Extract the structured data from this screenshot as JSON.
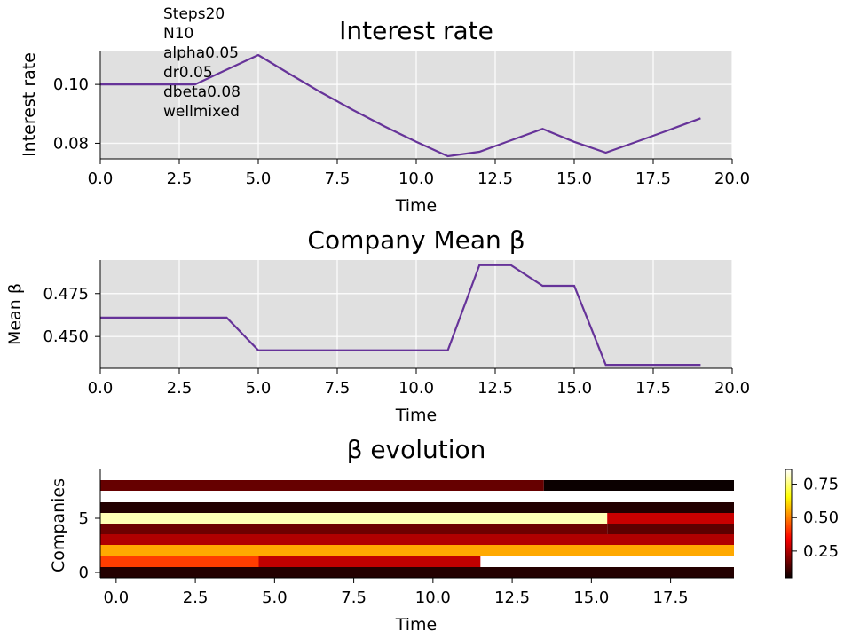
{
  "annotation_lines": [
    "Steps20",
    "N10",
    "alpha0.05",
    "dr0.05",
    "dbeta0.08",
    "wellmixed"
  ],
  "colors": {
    "line": "#663399",
    "axes_bg": "#e0e0e0",
    "grid": "#ffffff"
  },
  "colormap": "hot",
  "chart_data": [
    {
      "type": "line",
      "title": "Interest rate",
      "xlabel": "Time",
      "ylabel": "Interest rate",
      "xlim": [
        0,
        20
      ],
      "ylim": [
        0.0747,
        0.1115
      ],
      "xticks": [
        "0.0",
        "2.5",
        "5.0",
        "7.5",
        "10.0",
        "12.5",
        "15.0",
        "17.5",
        "20.0"
      ],
      "yticks": [
        "0.08",
        "0.10"
      ],
      "grid": true,
      "series": [
        {
          "x": [
            0,
            1,
            2,
            3,
            4,
            5,
            6,
            7,
            8,
            9,
            10,
            11,
            12,
            13,
            14,
            15,
            16,
            17,
            18,
            19
          ],
          "y": [
            0.1,
            0.1,
            0.1,
            0.1,
            0.105,
            0.11,
            0.1035,
            0.0972,
            0.0913,
            0.0857,
            0.0805,
            0.0756,
            0.0771,
            0.081,
            0.0849,
            0.0805,
            0.0768,
            0.0806,
            0.0845,
            0.0885
          ]
        }
      ]
    },
    {
      "type": "line",
      "title": "Company Mean β",
      "xlabel": "Time",
      "ylabel": "Mean β",
      "xlim": [
        0,
        20
      ],
      "ylim": [
        0.4315,
        0.4945
      ],
      "xticks": [
        "0.0",
        "2.5",
        "5.0",
        "7.5",
        "10.0",
        "12.5",
        "15.0",
        "17.5",
        "20.0"
      ],
      "yticks": [
        "0.450",
        "0.475"
      ],
      "grid": true,
      "series": [
        {
          "x": [
            0,
            1,
            2,
            3,
            4,
            5,
            6,
            7,
            8,
            9,
            10,
            11,
            12,
            13,
            14,
            15,
            16,
            17,
            18,
            19
          ],
          "y": [
            0.461,
            0.461,
            0.461,
            0.461,
            0.461,
            0.442,
            0.442,
            0.442,
            0.442,
            0.442,
            0.442,
            0.442,
            0.4915,
            0.4915,
            0.4795,
            0.4795,
            0.4335,
            0.4335,
            0.4335,
            0.4335
          ]
        }
      ]
    },
    {
      "type": "heatmap",
      "title": "β evolution",
      "xlabel": "Time",
      "ylabel": "Companies",
      "xticks": [
        "0.0",
        "2.5",
        "5.0",
        "7.5",
        "10.0",
        "12.5",
        "15.0",
        "17.5"
      ],
      "yticks": [
        "0",
        "5"
      ],
      "colorbar_ticks": [
        "0.25",
        "0.50",
        "0.75"
      ],
      "vmin": 0.05,
      "vmax": 0.86,
      "rows": [
        {
          "company": 0,
          "segments": [
            {
              "from": 0,
              "to": 19,
              "value": 0.08
            }
          ]
        },
        {
          "company": 1,
          "segments": [
            {
              "from": 0,
              "to": 4,
              "value": 0.42
            },
            {
              "from": 5,
              "to": 11,
              "value": 0.27
            },
            {
              "from": 12,
              "to": 19,
              "value": 0.86
            }
          ]
        },
        {
          "company": 2,
          "segments": [
            {
              "from": 0,
              "to": 19,
              "value": 0.55
            }
          ]
        },
        {
          "company": 3,
          "segments": [
            {
              "from": 0,
              "to": 19,
              "value": 0.25
            }
          ]
        },
        {
          "company": 4,
          "segments": [
            {
              "from": 0,
              "to": 15,
              "value": 0.17
            },
            {
              "from": 16,
              "to": 19,
              "value": 0.15
            }
          ]
        },
        {
          "company": 5,
          "segments": [
            {
              "from": 0,
              "to": 15,
              "value": 0.8
            },
            {
              "from": 16,
              "to": 19,
              "value": 0.28
            }
          ]
        },
        {
          "company": 6,
          "segments": [
            {
              "from": 0,
              "to": 19,
              "value": 0.08
            }
          ]
        },
        {
          "company": 7,
          "segments": [
            {
              "from": 0,
              "to": 19,
              "value": 0.86
            }
          ]
        },
        {
          "company": 8,
          "segments": [
            {
              "from": 0,
              "to": 13,
              "value": 0.16
            },
            {
              "from": 14,
              "to": 19,
              "value": 0.05
            }
          ]
        }
      ]
    }
  ]
}
